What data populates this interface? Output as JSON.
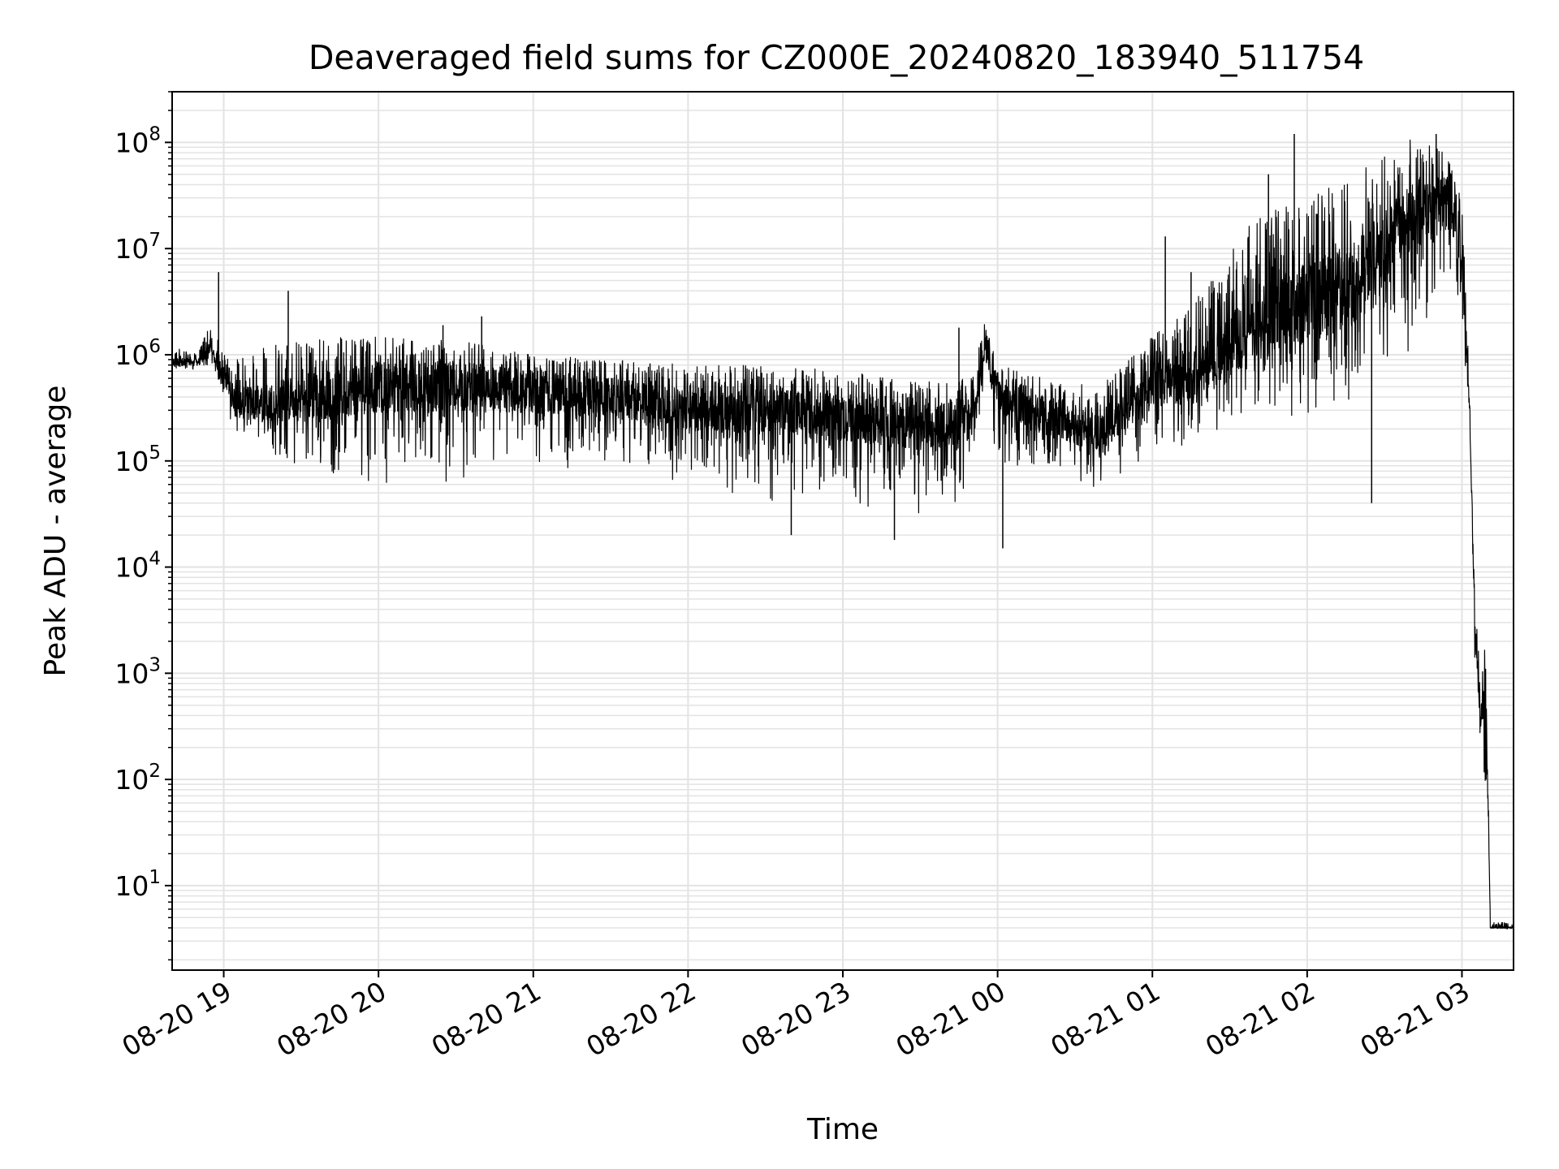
{
  "chart_data": {
    "type": "line",
    "title": "Deaveraged field sums for CZ000E_20240820_183940_511754",
    "xlabel": "Time",
    "ylabel": "Peak ADU - average",
    "yscale": "log",
    "grid": true,
    "line_color": "#000000",
    "grid_color": "#e3e3e3",
    "xlim": [
      "2024-08-20 18:40",
      "2024-08-21 03:20"
    ],
    "ylim": [
      1.6,
      300000000
    ],
    "x_ticks": [
      {
        "value": "2024-08-20 19:00",
        "label": "08-20 19"
      },
      {
        "value": "2024-08-20 20:00",
        "label": "08-20 20"
      },
      {
        "value": "2024-08-20 21:00",
        "label": "08-20 21"
      },
      {
        "value": "2024-08-20 22:00",
        "label": "08-20 22"
      },
      {
        "value": "2024-08-20 23:00",
        "label": "08-20 23"
      },
      {
        "value": "2024-08-21 00:00",
        "label": "08-21 00"
      },
      {
        "value": "2024-08-21 01:00",
        "label": "08-21 01"
      },
      {
        "value": "2024-08-21 02:00",
        "label": "08-21 02"
      },
      {
        "value": "2024-08-21 03:00",
        "label": "08-21 03"
      }
    ],
    "y_ticks": [
      {
        "value": 10,
        "base": "10",
        "exp": "1"
      },
      {
        "value": 100,
        "base": "10",
        "exp": "2"
      },
      {
        "value": 1000,
        "base": "10",
        "exp": "3"
      },
      {
        "value": 10000,
        "base": "10",
        "exp": "4"
      },
      {
        "value": 100000,
        "base": "10",
        "exp": "5"
      },
      {
        "value": 1000000,
        "base": "10",
        "exp": "6"
      },
      {
        "value": 10000000,
        "base": "10",
        "exp": "7"
      },
      {
        "value": 100000000,
        "base": "10",
        "exp": "8"
      }
    ],
    "series": [
      {
        "name": "",
        "envelope": [
          {
            "x": "2024-08-20 18:40",
            "base": 850000,
            "low": 650000,
            "high": 1200000
          },
          {
            "x": "2024-08-20 18:50",
            "base": 850000,
            "low": 700000,
            "high": 1000000
          },
          {
            "x": "2024-08-20 18:55",
            "base": 1100000,
            "low": 800000,
            "high": 2200000
          },
          {
            "x": "2024-08-20 19:00",
            "base": 650000,
            "low": 400000,
            "high": 1000000
          },
          {
            "x": "2024-08-20 19:05",
            "base": 350000,
            "low": 150000,
            "high": 900000
          },
          {
            "x": "2024-08-20 19:15",
            "base": 350000,
            "low": 120000,
            "high": 1300000
          },
          {
            "x": "2024-08-20 19:30",
            "base": 400000,
            "low": 70000,
            "high": 1400000
          },
          {
            "x": "2024-08-20 20:00",
            "base": 500000,
            "low": 60000,
            "high": 1500000
          },
          {
            "x": "2024-08-20 20:30",
            "base": 500000,
            "low": 60000,
            "high": 1400000
          },
          {
            "x": "2024-08-20 21:00",
            "base": 450000,
            "low": 70000,
            "high": 1000000
          },
          {
            "x": "2024-08-20 21:30",
            "base": 400000,
            "low": 80000,
            "high": 900000
          },
          {
            "x": "2024-08-20 22:00",
            "base": 300000,
            "low": 60000,
            "high": 800000
          },
          {
            "x": "2024-08-20 22:30",
            "base": 300000,
            "low": 40000,
            "high": 800000
          },
          {
            "x": "2024-08-20 23:00",
            "base": 250000,
            "low": 40000,
            "high": 700000
          },
          {
            "x": "2024-08-20 23:30",
            "base": 200000,
            "low": 30000,
            "high": 550000
          },
          {
            "x": "2024-08-20 23:50",
            "base": 250000,
            "low": 40000,
            "high": 600000
          },
          {
            "x": "2024-08-20 23:55",
            "base": 1200000,
            "low": 600000,
            "high": 2000000
          },
          {
            "x": "2024-08-21 00:00",
            "base": 400000,
            "low": 60000,
            "high": 800000
          },
          {
            "x": "2024-08-21 00:20",
            "base": 250000,
            "low": 60000,
            "high": 600000
          },
          {
            "x": "2024-08-21 00:40",
            "base": 180000,
            "low": 50000,
            "high": 500000
          },
          {
            "x": "2024-08-21 01:00",
            "base": 500000,
            "low": 100000,
            "high": 1500000
          },
          {
            "x": "2024-08-21 01:20",
            "base": 700000,
            "low": 150000,
            "high": 4000000
          },
          {
            "x": "2024-08-21 01:40",
            "base": 2000000,
            "low": 300000,
            "high": 20000000
          },
          {
            "x": "2024-08-21 02:00",
            "base": 3000000,
            "low": 200000,
            "high": 30000000
          },
          {
            "x": "2024-08-21 02:20",
            "base": 5000000,
            "low": 300000,
            "high": 60000000
          },
          {
            "x": "2024-08-21 02:40",
            "base": 20000000,
            "low": 800000,
            "high": 110000000
          },
          {
            "x": "2024-08-21 02:55",
            "base": 30000000,
            "low": 1500000,
            "high": 80000000
          },
          {
            "x": "2024-08-21 03:00",
            "base": 10000000,
            "low": 2000000,
            "high": 30000000
          },
          {
            "x": "2024-08-21 03:03",
            "base": 300000,
            "low": 200000,
            "high": 500000
          },
          {
            "x": "2024-08-21 03:05",
            "base": 3000,
            "low": 1000,
            "high": 5000
          },
          {
            "x": "2024-08-21 03:07",
            "base": 400,
            "low": 250,
            "high": 1000
          },
          {
            "x": "2024-08-21 03:09",
            "base": 500,
            "low": 70,
            "high": 1800
          },
          {
            "x": "2024-08-21 03:10",
            "base": 100,
            "low": 60,
            "high": 300
          },
          {
            "x": "2024-08-21 03:11",
            "base": 4,
            "low": 4,
            "high": 4.5
          },
          {
            "x": "2024-08-21 03:20",
            "base": 4,
            "low": 4,
            "high": 4.5
          }
        ],
        "spikes": [
          {
            "x": "2024-08-20 18:58",
            "y": 6000000
          },
          {
            "x": "2024-08-20 19:25",
            "y": 4000000
          },
          {
            "x": "2024-08-20 20:25",
            "y": 1900000
          },
          {
            "x": "2024-08-20 20:40",
            "y": 2300000
          },
          {
            "x": "2024-08-20 22:40",
            "y": 20000
          },
          {
            "x": "2024-08-20 23:20",
            "y": 18000
          },
          {
            "x": "2024-08-20 23:45",
            "y": 1800000
          },
          {
            "x": "2024-08-21 00:02",
            "y": 15000
          },
          {
            "x": "2024-08-21 01:05",
            "y": 13000000
          },
          {
            "x": "2024-08-21 01:15",
            "y": 6000000
          },
          {
            "x": "2024-08-21 01:45",
            "y": 50000000
          },
          {
            "x": "2024-08-21 01:55",
            "y": 120000000
          },
          {
            "x": "2024-08-21 02:25",
            "y": 40000
          },
          {
            "x": "2024-08-21 02:50",
            "y": 120000000
          }
        ]
      }
    ]
  }
}
